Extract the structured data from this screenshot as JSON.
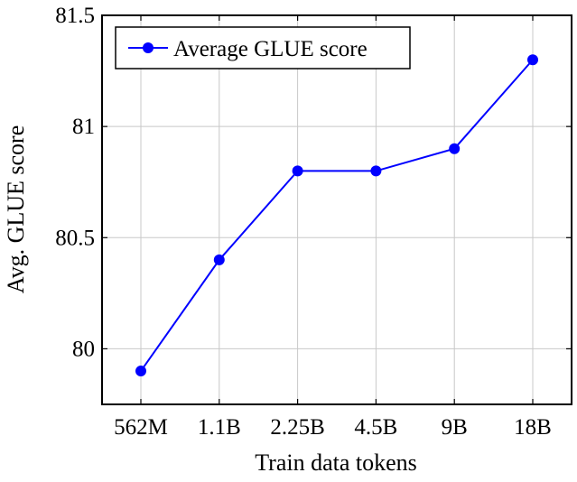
{
  "chart_data": {
    "type": "line",
    "categories": [
      "562M",
      "1.1B",
      "2.25B",
      "4.5B",
      "9B",
      "18B"
    ],
    "series": [
      {
        "name": "Average GLUE score",
        "values": [
          79.9,
          80.4,
          80.8,
          80.8,
          80.9,
          81.3
        ],
        "color": "#0000ff"
      }
    ],
    "xlabel": "Train data tokens",
    "ylabel": "Avg. GLUE score",
    "ylim": [
      79.75,
      81.5
    ],
    "yticks": [
      80,
      80.5,
      81,
      81.5
    ],
    "ytick_labels": [
      "80",
      "80.5",
      "81",
      "81.5"
    ],
    "grid": true,
    "legend_position": "top-left"
  }
}
